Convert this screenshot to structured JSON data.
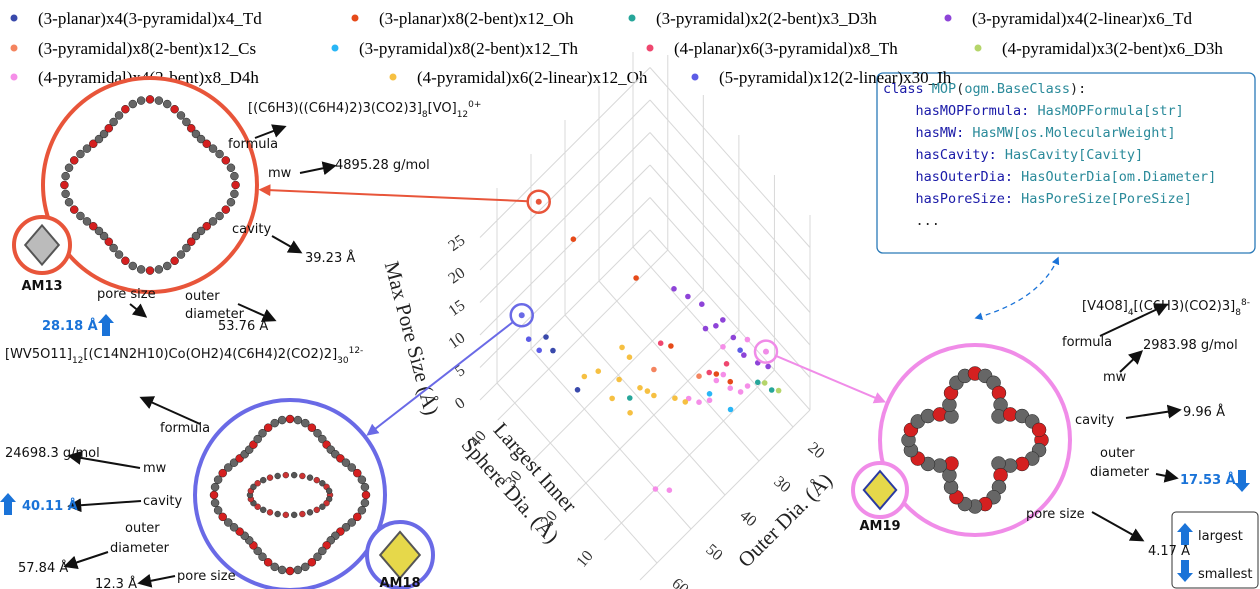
{
  "chart_data": {
    "type": "scatter3d",
    "xlabel": "Outer Dia. (Å)",
    "ylabel": [
      "Largest Inner",
      "Sphere Dia. (Å)"
    ],
    "zlabel": "Max Pore Size (Å)",
    "xlim": [
      15,
      65
    ],
    "xticks": [
      20,
      30,
      40,
      50,
      60
    ],
    "ylim": [
      0,
      45
    ],
    "yticks": [
      0,
      10,
      20,
      30,
      40
    ],
    "zlim": [
      0,
      30
    ],
    "zticks": [
      0,
      5,
      10,
      15,
      20,
      25
    ],
    "grid": true,
    "series": [
      {
        "name": "(3-planar)x4(3-pyramidal)x4_Td",
        "color": "#3949ab",
        "x": [
          55,
          54,
          52
        ],
        "y": [
          36,
          35,
          30
        ],
        "z": [
          10,
          8,
          4
        ]
      },
      {
        "name": "(3-planar)x8(2-bent)x12_Oh",
        "color": "#e64a19",
        "x": [
          48,
          40,
          35,
          30,
          28
        ],
        "y": [
          35,
          25,
          20,
          12,
          10
        ],
        "z": [
          22,
          18,
          8,
          6,
          5
        ]
      },
      {
        "name": "(3-pyramidal)x2(2-bent)x3_D3h",
        "color": "#26a69a",
        "x": [
          20,
          22,
          45
        ],
        "y": [
          6,
          8,
          22
        ],
        "z": [
          2,
          3,
          4
        ]
      },
      {
        "name": "(3-pyramidal)x4(2-linear)x6_Td",
        "color": "#8e44d8",
        "x": [
          28,
          27,
          30,
          25,
          24,
          26,
          32,
          22,
          20,
          29
        ],
        "y": [
          18,
          15,
          20,
          12,
          10,
          14,
          22,
          8,
          7,
          16
        ],
        "z": [
          12,
          10,
          13,
          9,
          7,
          11,
          14,
          6,
          5,
          10
        ]
      },
      {
        "name": "(3-pyramidal)x8(2-bent)x12_Cs",
        "color": "#f4845f",
        "x": [
          33,
          40
        ],
        "y": [
          14,
          20
        ],
        "z": [
          6,
          7
        ]
      },
      {
        "name": "(3-pyramidal)x8(2-bent)x12_Th",
        "color": "#29b6f6",
        "x": [
          32,
          30
        ],
        "y": [
          12,
          8
        ],
        "z": [
          4,
          3
        ]
      },
      {
        "name": "(4-planar)x6(3-pyramidal)x8_Th",
        "color": "#ef476f",
        "x": [
          38,
          30,
          27
        ],
        "y": [
          20,
          14,
          12
        ],
        "z": [
          10,
          5,
          6
        ]
      },
      {
        "name": "(4-pyramidal)x3(2-bent)x6_D3h",
        "color": "#b5d56a",
        "x": [
          21,
          19
        ],
        "y": [
          7,
          5
        ],
        "z": [
          3,
          2
        ]
      },
      {
        "name": "(4-pyramidal)x4(2-bent)x8_D4h",
        "color": "#f58ee8",
        "x": [
          28,
          26,
          30,
          32,
          29,
          25,
          27,
          33,
          35,
          24,
          50,
          48
        ],
        "y": [
          10,
          9,
          12,
          12,
          11,
          8,
          13,
          14,
          15,
          9,
          10,
          8
        ],
        "z": [
          4,
          3,
          5,
          3,
          6,
          4,
          8,
          2,
          3,
          10,
          0,
          0
        ]
      },
      {
        "name": "(4-pyramidal)x6(2-linear)x12_Oh",
        "color": "#f6c042",
        "x": [
          45,
          42,
          48,
          40,
          44,
          38,
          50,
          46,
          36,
          43,
          47,
          41
        ],
        "y": [
          25,
          22,
          28,
          20,
          18,
          16,
          30,
          26,
          15,
          24,
          20,
          28
        ],
        "z": [
          5,
          4,
          6,
          3,
          7,
          4,
          5,
          2,
          3,
          8,
          4,
          6
        ]
      },
      {
        "name": "(5-pyramidal)x12(2-linear)x30_Ih",
        "color": "#5c5ce6",
        "x": [
          58,
          57,
          23
        ],
        "y": [
          38,
          36,
          12
        ],
        "z": [
          10,
          9,
          6
        ]
      }
    ],
    "property_labels": {
      "formula": "formula",
      "mw": "mw",
      "cavity": "cavity",
      "outer": [
        "outer",
        "diameter"
      ],
      "pore": "pore size"
    },
    "extreme_labels": {
      "up": "largest",
      "down": "smallest"
    },
    "highlights": [
      {
        "name": "AM13",
        "color": "#e8553a",
        "x": 53.76,
        "y": 39.23,
        "z": 28.18,
        "formula": [
          {
            "text": "[(C6H3)((C6H4)2)3(CO2)3]"
          },
          {
            "sub": "8"
          },
          {
            "text": "[VO]"
          },
          {
            "sub": "12"
          },
          {
            "sup": "0+"
          }
        ],
        "value_labels": {
          "mw": "4895.28 g/mol",
          "cavity": "39.23 Å",
          "outer": "53.76 Å",
          "pore": "28.18 Å"
        },
        "emphasis": "pore",
        "direction": "up"
      },
      {
        "name": "AM18",
        "color": "#6a6ae6",
        "x": 57.84,
        "y": 40.11,
        "z": 12.3,
        "formula": [
          {
            "text": "[WV5O11]"
          },
          {
            "sub": "12"
          },
          {
            "text": "[(C14N2H10)Co(OH2)4(C6H4)2(CO2)2]"
          },
          {
            "sub": "30"
          },
          {
            "sup": "12-"
          }
        ],
        "value_labels": {
          "mw": "24698.3 g/mol",
          "cavity": "40.11 Å",
          "outer": "57.84 Å",
          "pore": "12.3 Å"
        },
        "emphasis": "cavity",
        "direction": "up"
      },
      {
        "name": "AM19",
        "color": "#f08ce8",
        "x": 17.53,
        "y": 9.96,
        "z": 4.17,
        "formula": [
          {
            "text": "[V4O8]"
          },
          {
            "sub": "4"
          },
          {
            "text": "[(C6H3)(CO2)3]"
          },
          {
            "sub": "8"
          },
          {
            "sup": "8-"
          }
        ],
        "value_labels": {
          "mw": "2983.98 g/mol",
          "cavity": "9.96 Å",
          "outer": "17.53 Å",
          "pore": "4.17 Å"
        },
        "emphasis": "outer",
        "direction": "down"
      }
    ],
    "code": [
      [
        {
          "text": "class ",
          "color": "#1a1aa8"
        },
        {
          "text": "MOP",
          "color": "#2a8a9a"
        },
        {
          "text": "(",
          "color": "#222"
        },
        {
          "text": "ogm.BaseClass",
          "color": "#2a8a9a"
        },
        {
          "text": "):",
          "color": "#222"
        }
      ],
      [
        {
          "text": "    hasMOPFormula: ",
          "color": "#1a1aa8"
        },
        {
          "text": "HasMOPFormula[str]",
          "color": "#2a8a9a"
        }
      ],
      [
        {
          "text": "    hasMW: ",
          "color": "#1a1aa8"
        },
        {
          "text": "HasMW[os.MolecularWeight]",
          "color": "#2a8a9a"
        }
      ],
      [
        {
          "text": "    hasCavity: ",
          "color": "#1a1aa8"
        },
        {
          "text": "HasCavity[Cavity]",
          "color": "#2a8a9a"
        }
      ],
      [
        {
          "text": "    hasOuterDia: ",
          "color": "#1a1aa8"
        },
        {
          "text": "HasOuterDia[om.Diameter]",
          "color": "#2a8a9a"
        }
      ],
      [
        {
          "text": "    hasPoreSize: ",
          "color": "#1a1aa8"
        },
        {
          "text": "HasPoreSize[PoreSize]",
          "color": "#2a8a9a"
        }
      ],
      [
        {
          "text": "    ...",
          "color": "#222"
        }
      ]
    ]
  }
}
